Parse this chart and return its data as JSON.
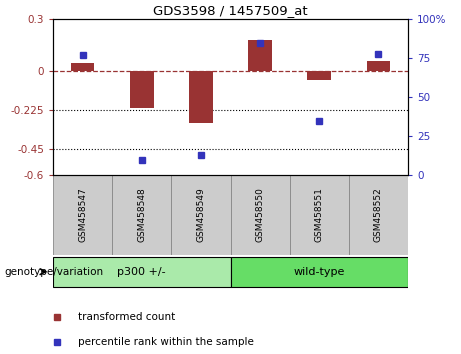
{
  "title": "GDS3598 / 1457509_at",
  "samples": [
    "GSM458547",
    "GSM458548",
    "GSM458549",
    "GSM458550",
    "GSM458551",
    "GSM458552"
  ],
  "red_values": [
    0.05,
    -0.21,
    -0.3,
    0.18,
    -0.05,
    0.06
  ],
  "blue_values": [
    77,
    10,
    13,
    85,
    35,
    78
  ],
  "ylim_left": [
    -0.6,
    0.3
  ],
  "ylim_right": [
    0,
    100
  ],
  "yticks_left": [
    0.3,
    0.0,
    -0.225,
    -0.45,
    -0.6
  ],
  "ytick_labels_left": [
    "0.3",
    "0",
    "-0.225",
    "-0.45",
    "-0.6"
  ],
  "yticks_right": [
    100,
    75,
    50,
    25,
    0
  ],
  "hlines_dotted": [
    -0.225,
    -0.45
  ],
  "group1_label": "p300 +/-",
  "group2_label": "wild-type",
  "group1_n": 3,
  "group2_n": 3,
  "genotype_label": "genotype/variation",
  "legend1": "transformed count",
  "legend2": "percentile rank within the sample",
  "red_color": "#993333",
  "blue_color": "#3333bb",
  "group_green_light": "#aaeaaa",
  "group_green_dark": "#66dd66",
  "sample_grey": "#cccccc",
  "bar_width": 0.4
}
